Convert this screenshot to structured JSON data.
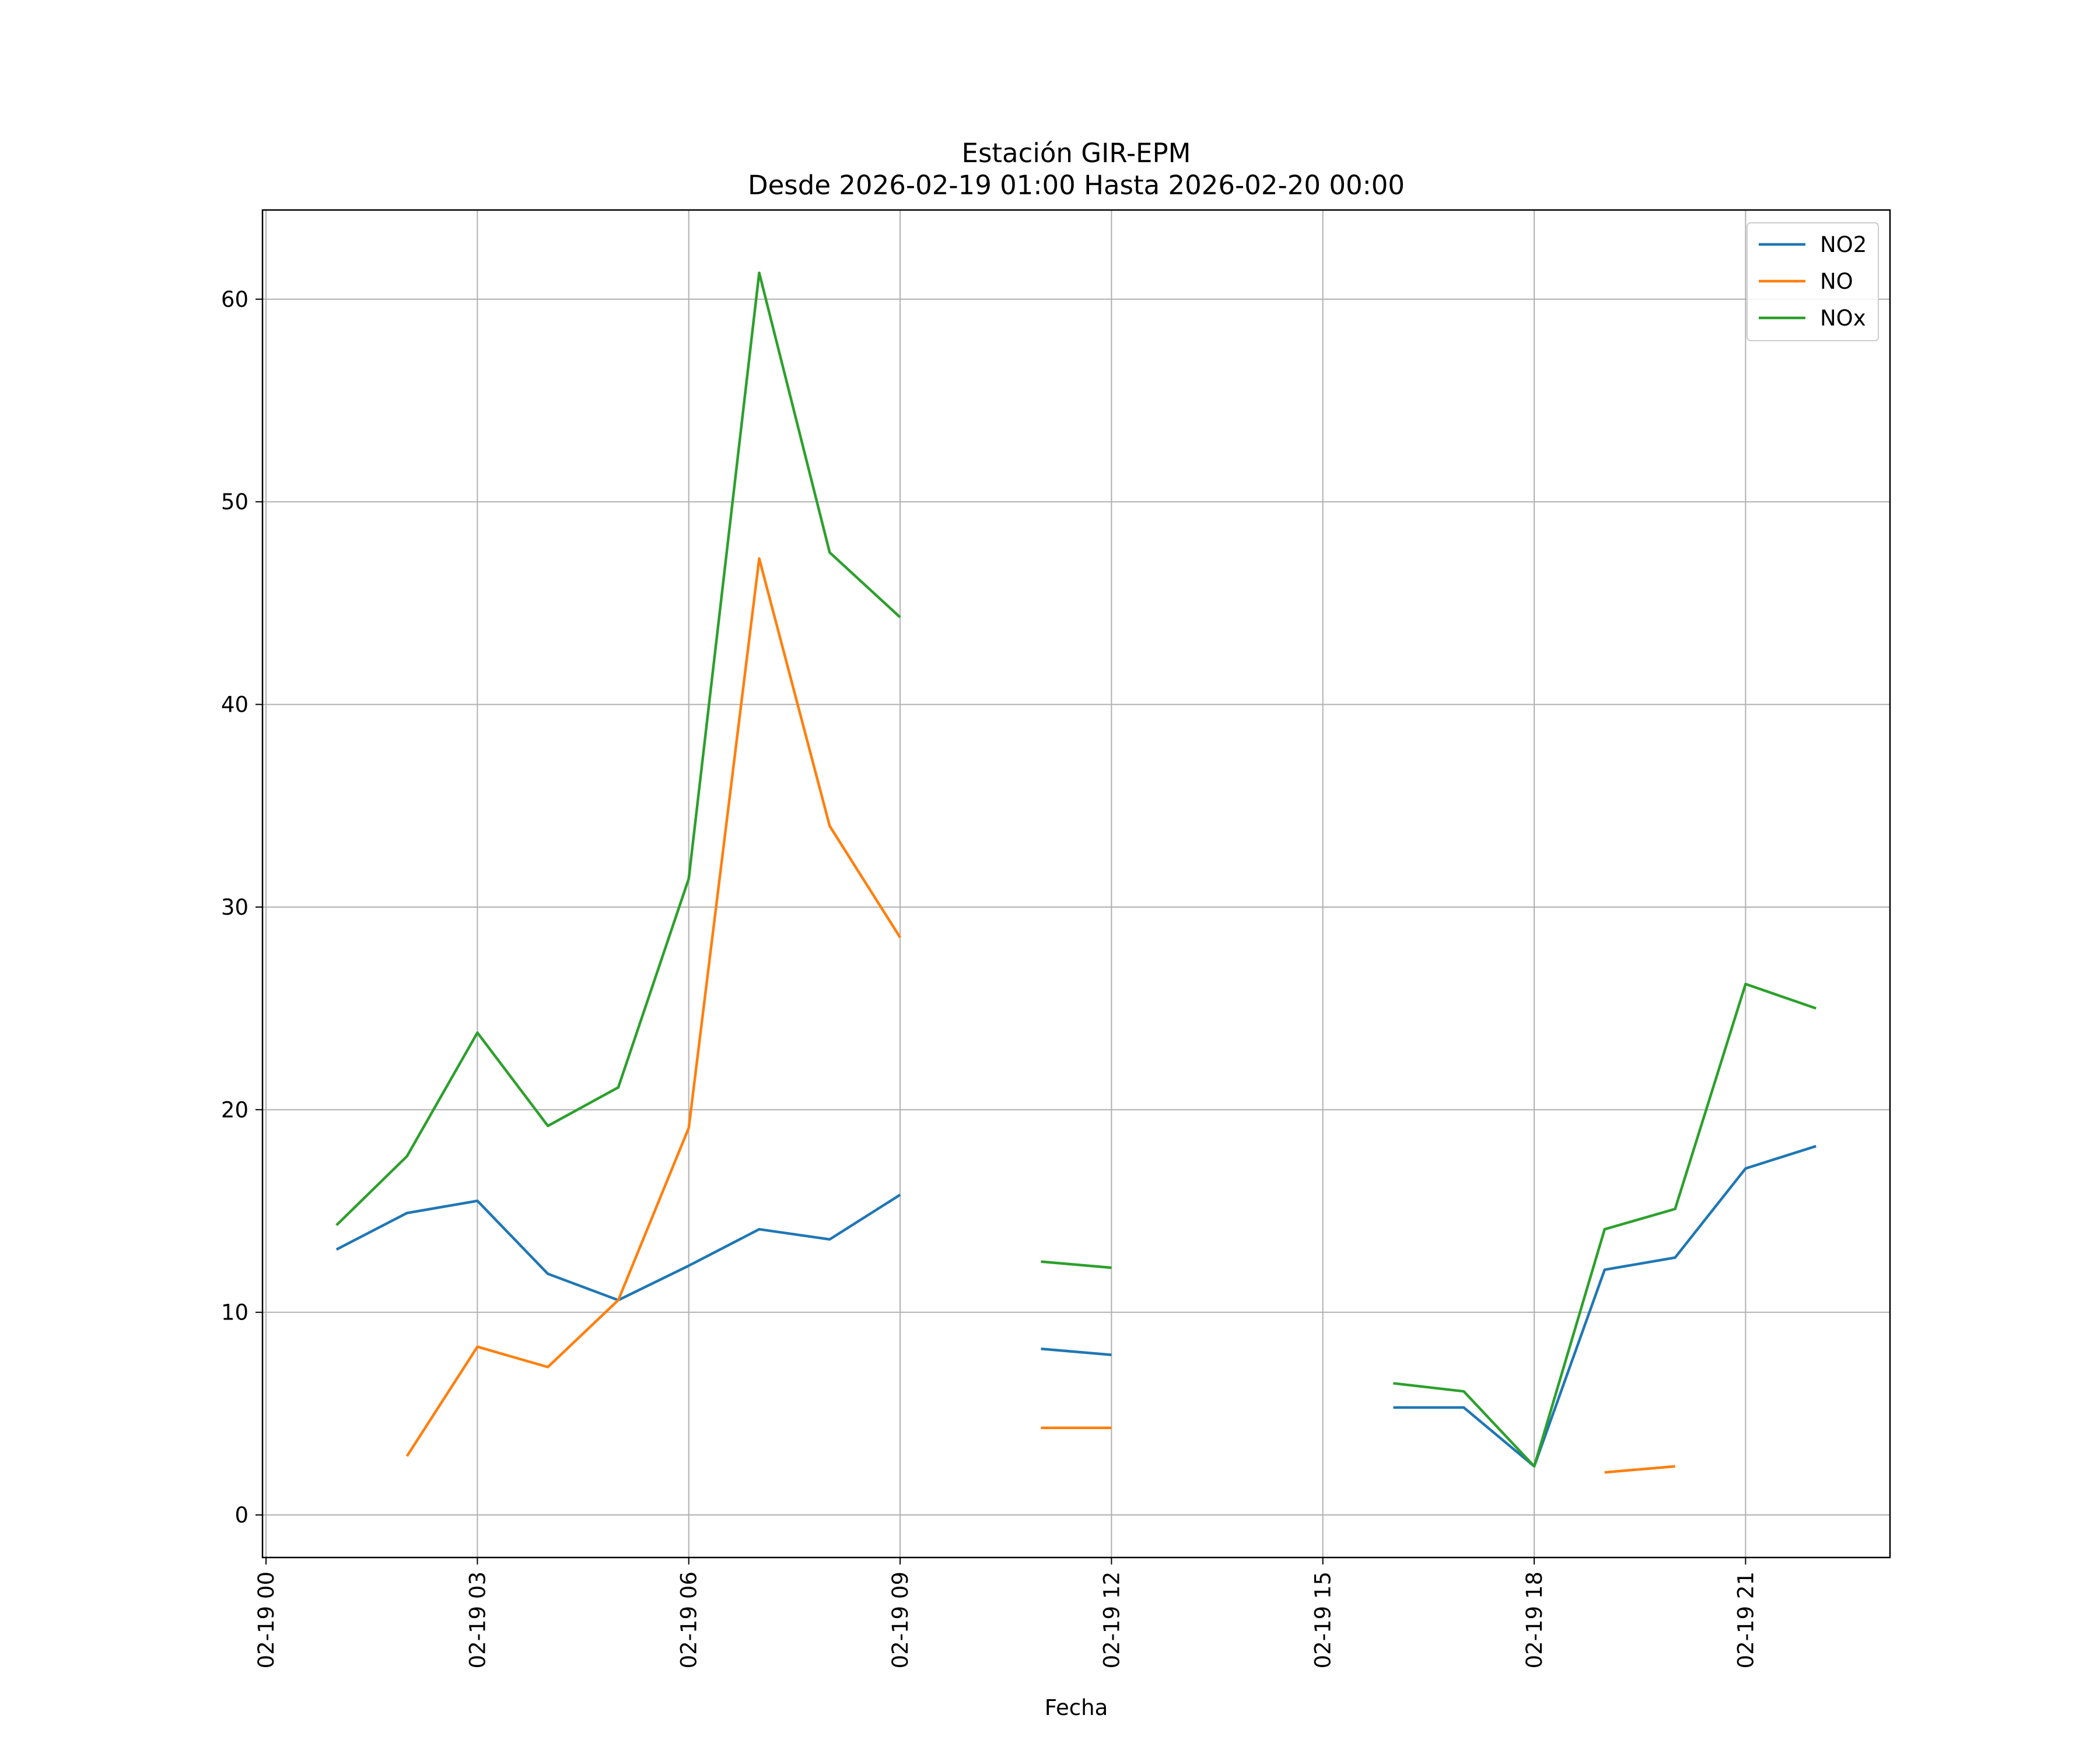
{
  "chart_data": {
    "type": "line",
    "title": "Estación GIR-EPM",
    "subtitle": "Desde 2026-02-19 01:00 Hasta 2026-02-20 00:00",
    "xlabel": "Fecha",
    "ylabel": "",
    "x": [
      "2026-02-19 01:00",
      "2026-02-19 02:00",
      "2026-02-19 03:00",
      "2026-02-19 04:00",
      "2026-02-19 05:00",
      "2026-02-19 06:00",
      "2026-02-19 07:00",
      "2026-02-19 08:00",
      "2026-02-19 09:00",
      "2026-02-19 10:00",
      "2026-02-19 11:00",
      "2026-02-19 12:00",
      "2026-02-19 13:00",
      "2026-02-19 14:00",
      "2026-02-19 15:00",
      "2026-02-19 16:00",
      "2026-02-19 17:00",
      "2026-02-19 18:00",
      "2026-02-19 19:00",
      "2026-02-19 20:00",
      "2026-02-19 21:00",
      "2026-02-19 22:00"
    ],
    "series": [
      {
        "name": "NO2",
        "color": "#1f77b4",
        "values": [
          13.1,
          14.9,
          15.5,
          11.9,
          10.6,
          12.3,
          14.1,
          13.6,
          15.8,
          null,
          8.2,
          7.9,
          null,
          null,
          null,
          5.3,
          5.3,
          2.4,
          12.1,
          12.7,
          17.1,
          18.2
        ]
      },
      {
        "name": "NO",
        "color": "#ff7f0e",
        "values": [
          null,
          2.9,
          8.3,
          7.3,
          10.6,
          19.1,
          47.2,
          34.0,
          28.5,
          null,
          4.3,
          4.3,
          null,
          null,
          null,
          null,
          null,
          null,
          2.1,
          2.4,
          null,
          null
        ]
      },
      {
        "name": "NOx",
        "color": "#2ca02c",
        "values": [
          14.3,
          17.7,
          23.8,
          19.2,
          21.1,
          31.4,
          61.3,
          47.5,
          44.3,
          null,
          12.5,
          12.2,
          null,
          null,
          null,
          6.5,
          6.1,
          2.4,
          14.1,
          15.1,
          26.2,
          25.0
        ]
      }
    ],
    "x_ticks": [
      "02-19 00",
      "02-19 03",
      "02-19 06",
      "02-19 09",
      "02-19 12",
      "02-19 15",
      "02-19 18",
      "02-19 21"
    ],
    "x_tick_hours": [
      0,
      3,
      6,
      9,
      12,
      15,
      18,
      21
    ],
    "y_ticks": [
      0,
      10,
      20,
      30,
      40,
      50,
      60
    ],
    "ylim": [
      -2.1,
      64.4
    ],
    "xlim": [
      "2026-02-18 23:57",
      "2026-02-19 23:03"
    ],
    "grid": true,
    "legend_position": "top-right"
  }
}
